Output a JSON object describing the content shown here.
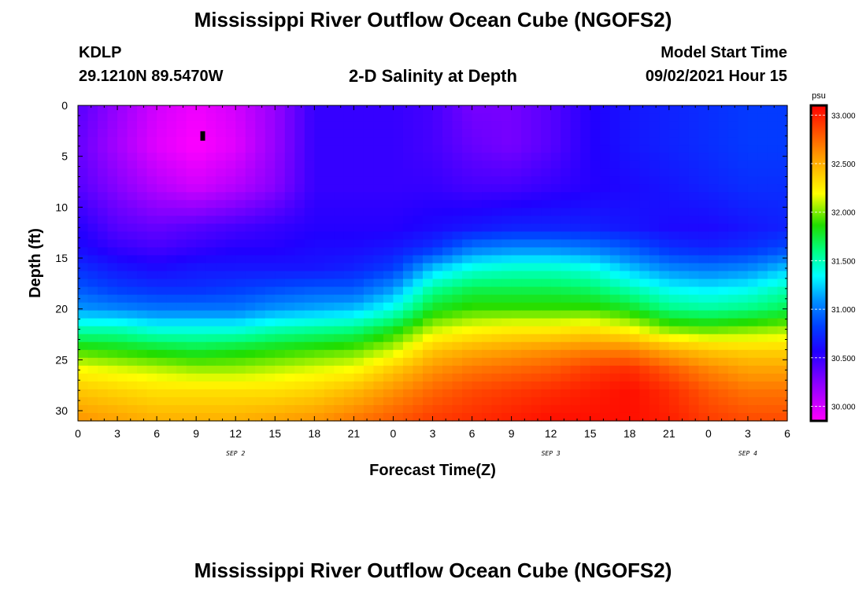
{
  "header": {
    "title": "Mississippi River Outflow Ocean Cube (NGOFS2)",
    "station_id": "KDLP",
    "station_coords": "29.1210N  89.5470W",
    "plot_subtitle": "2-D Salinity at Depth",
    "model_start_label": "Model Start Time",
    "model_start_value": "09/02/2021 Hour 15"
  },
  "footer": {
    "title": "Mississippi River Outflow Ocean Cube (NGOFS2)"
  },
  "chart_data": {
    "type": "heatmap",
    "title": "2-D Salinity at Depth",
    "xlabel": "Forecast Time(Z)",
    "ylabel": "Depth (ft)",
    "x_tick_labels": [
      "0",
      "3",
      "6",
      "9",
      "12",
      "15",
      "18",
      "21",
      "0",
      "3",
      "6",
      "9",
      "12",
      "15",
      "18",
      "21",
      "0",
      "3",
      "6"
    ],
    "x_range_hours": [
      0,
      54
    ],
    "date_labels": [
      {
        "label": "SEP 2",
        "hour": 12
      },
      {
        "label": "SEP 3",
        "hour": 36
      },
      {
        "label": "SEP 4",
        "hour": 51
      }
    ],
    "y_tick_labels": [
      "0",
      "5",
      "10",
      "15",
      "20",
      "25",
      "30"
    ],
    "y_range_ft": [
      0,
      31
    ],
    "y_inverted": true,
    "colorbar": {
      "unit": "psu",
      "min": 29.85,
      "max": 33.1,
      "tick_labels": [
        "30.000",
        "30.500",
        "31.000",
        "31.500",
        "32.000",
        "32.500",
        "33.000"
      ]
    },
    "station_marker": {
      "hour": 9.5,
      "depth_ft": 3
    },
    "depth_levels_ft": [
      0,
      4,
      8,
      12,
      14,
      16,
      18,
      20,
      22,
      24,
      26,
      28,
      31
    ],
    "time_hours": [
      0,
      3,
      6,
      9,
      12,
      15,
      18,
      21,
      24,
      27,
      30,
      33,
      36,
      39,
      42,
      45,
      48,
      51,
      54
    ],
    "salinity_psu": [
      [
        30.4,
        30.2,
        30.0,
        29.9,
        30.0,
        30.2,
        30.5,
        30.5,
        30.5,
        30.45,
        30.3,
        30.3,
        30.4,
        30.55,
        30.65,
        30.7,
        30.75,
        30.8,
        30.8
      ],
      [
        30.35,
        30.15,
        29.95,
        29.85,
        29.95,
        30.2,
        30.5,
        30.5,
        30.5,
        30.45,
        30.35,
        30.3,
        30.4,
        30.55,
        30.65,
        30.7,
        30.75,
        30.8,
        30.8
      ],
      [
        30.4,
        30.25,
        30.1,
        30.0,
        30.1,
        30.25,
        30.5,
        30.5,
        30.5,
        30.5,
        30.45,
        30.45,
        30.5,
        30.55,
        30.6,
        30.65,
        30.7,
        30.75,
        30.75
      ],
      [
        30.55,
        30.4,
        30.35,
        30.4,
        30.45,
        30.5,
        30.55,
        30.55,
        30.55,
        30.6,
        30.65,
        30.7,
        30.7,
        30.7,
        30.65,
        30.6,
        30.6,
        30.65,
        30.7
      ],
      [
        30.6,
        30.5,
        30.45,
        30.5,
        30.55,
        30.55,
        30.6,
        30.6,
        30.65,
        30.75,
        31.0,
        31.05,
        31.05,
        31.0,
        30.9,
        30.75,
        30.7,
        30.75,
        30.85
      ],
      [
        30.75,
        30.65,
        30.6,
        30.65,
        30.65,
        30.65,
        30.65,
        30.7,
        30.8,
        31.2,
        31.4,
        31.45,
        31.45,
        31.4,
        31.2,
        31.05,
        31.0,
        31.05,
        31.2
      ],
      [
        30.9,
        30.8,
        30.75,
        30.75,
        30.8,
        30.85,
        30.9,
        30.9,
        31.1,
        31.55,
        31.7,
        31.7,
        31.7,
        31.65,
        31.5,
        31.35,
        31.3,
        31.35,
        31.5
      ],
      [
        31.1,
        31.05,
        31.0,
        31.0,
        31.0,
        31.1,
        31.15,
        31.2,
        31.4,
        31.8,
        31.9,
        31.9,
        31.9,
        31.9,
        31.8,
        31.6,
        31.55,
        31.6,
        31.7
      ],
      [
        31.5,
        31.5,
        31.4,
        31.4,
        31.4,
        31.5,
        31.55,
        31.6,
        31.8,
        32.1,
        32.2,
        32.25,
        32.25,
        32.3,
        32.2,
        32.0,
        31.95,
        32.0,
        32.05
      ],
      [
        31.9,
        31.85,
        31.8,
        31.75,
        31.8,
        31.85,
        31.9,
        31.95,
        32.1,
        32.4,
        32.5,
        32.55,
        32.6,
        32.65,
        32.65,
        32.5,
        32.4,
        32.35,
        32.35
      ],
      [
        32.2,
        32.15,
        32.1,
        32.05,
        32.05,
        32.1,
        32.15,
        32.2,
        32.4,
        32.6,
        32.7,
        32.75,
        32.8,
        32.9,
        32.95,
        32.8,
        32.65,
        32.55,
        32.55
      ],
      [
        32.4,
        32.35,
        32.3,
        32.3,
        32.3,
        32.3,
        32.35,
        32.45,
        32.6,
        32.75,
        32.85,
        32.9,
        32.95,
        33.0,
        33.05,
        32.95,
        32.8,
        32.7,
        32.7
      ],
      [
        32.6,
        32.55,
        32.5,
        32.5,
        32.5,
        32.55,
        32.6,
        32.7,
        32.8,
        32.9,
        32.95,
        33.0,
        33.05,
        33.05,
        33.05,
        33.0,
        32.9,
        32.85,
        32.85
      ]
    ]
  }
}
